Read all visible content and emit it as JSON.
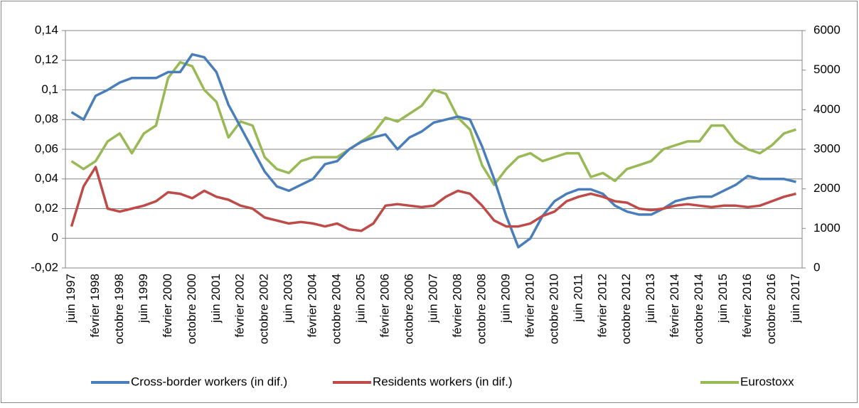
{
  "chart_data": {
    "type": "line",
    "categories": [
      "juin 1997",
      null,
      "février 1998",
      null,
      "octobre 1998",
      null,
      "juin 1999",
      null,
      "février 2000",
      null,
      "octobre 2000",
      null,
      "juin 2001",
      null,
      "février 2002",
      null,
      "octobre 2002",
      null,
      "juin 2003",
      null,
      "février 2004",
      null,
      "octobre 2004",
      null,
      "juin 2005",
      null,
      "février 2006",
      null,
      "octobre 2006",
      null,
      "juin 2007",
      null,
      "février 2008",
      null,
      "octobre 2008",
      null,
      "juin 2009",
      null,
      "février 2010",
      null,
      "octobre 2010",
      null,
      "juin 2011",
      null,
      "février 2012",
      null,
      "octobre 2012",
      null,
      "juin 2013",
      null,
      "février 2014",
      null,
      "octobre 2014",
      null,
      "juin 2015",
      null,
      "février 2016",
      null,
      "octobre 2016",
      null,
      "juin 2017"
    ],
    "series": [
      {
        "name": "Cross-border workers (in dif.)",
        "color": "#4a7ebb",
        "values": [
          0.085,
          0.08,
          0.096,
          0.1,
          0.105,
          0.108,
          0.108,
          0.108,
          0.112,
          0.112,
          0.124,
          0.122,
          0.112,
          0.09,
          0.075,
          0.06,
          0.045,
          0.035,
          0.032,
          0.036,
          0.04,
          0.05,
          0.052,
          0.06,
          0.065,
          0.068,
          0.07,
          0.06,
          0.068,
          0.072,
          0.078,
          0.08,
          0.082,
          0.08,
          0.062,
          0.04,
          0.015,
          -0.006,
          0.0,
          0.015,
          0.025,
          0.03,
          0.033,
          0.033,
          0.03,
          0.022,
          0.018,
          0.016,
          0.016,
          0.02,
          0.025,
          0.027,
          0.028,
          0.028,
          0.032,
          0.036,
          0.042,
          0.04,
          0.04,
          0.04,
          0.038
        ]
      },
      {
        "name": "Residents workers (in dif.)",
        "color": "#be4b48",
        "values": [
          0.008,
          0.035,
          0.048,
          0.02,
          0.018,
          0.02,
          0.022,
          0.025,
          0.031,
          0.03,
          0.027,
          0.032,
          0.028,
          0.026,
          0.022,
          0.02,
          0.014,
          0.012,
          0.01,
          0.011,
          0.01,
          0.008,
          0.01,
          0.006,
          0.005,
          0.01,
          0.022,
          0.023,
          0.022,
          0.021,
          0.022,
          0.028,
          0.032,
          0.03,
          0.022,
          0.012,
          0.008,
          0.008,
          0.01,
          0.015,
          0.018,
          0.025,
          0.028,
          0.03,
          0.028,
          0.025,
          0.024,
          0.02,
          0.019,
          0.02,
          0.022,
          0.023,
          0.022,
          0.021,
          0.022,
          0.022,
          0.021,
          0.022,
          0.025,
          0.028,
          0.03
        ]
      },
      {
        "name": "Eurostoxx",
        "color": "#98b954",
        "axis": "y2",
        "values": [
          2700,
          2500,
          2700,
          3200,
          3400,
          2900,
          3400,
          3600,
          4800,
          5200,
          5100,
          4500,
          4200,
          3300,
          3700,
          3600,
          2800,
          2500,
          2400,
          2700,
          2800,
          2800,
          2800,
          3000,
          3200,
          3400,
          3800,
          3700,
          3900,
          4100,
          4500,
          4400,
          3800,
          3500,
          2600,
          2100,
          2500,
          2800,
          2900,
          2700,
          2800,
          2900,
          2900,
          2300,
          2400,
          2200,
          2500,
          2600,
          2700,
          3000,
          3100,
          3200,
          3200,
          3600,
          3600,
          3200,
          3000,
          2900,
          3100,
          3400,
          3500
        ]
      }
    ],
    "ylim": [
      -0.02,
      0.14
    ],
    "yticks": [
      {
        "value": -0.02,
        "label": "-0,02"
      },
      0,
      {
        "value": 0.02,
        "label": "0,02"
      },
      {
        "value": 0.04,
        "label": "0,04"
      },
      {
        "value": 0.06,
        "label": "0,06"
      },
      {
        "value": 0.08,
        "label": "0,08"
      },
      {
        "value": 0.1,
        "label": "0,1"
      },
      {
        "value": 0.12,
        "label": "0,12"
      },
      {
        "value": 0.14,
        "label": "0,14"
      }
    ],
    "y2lim": [
      0,
      6000
    ],
    "y2ticks": [
      0,
      1000,
      2000,
      3000,
      4000,
      5000,
      6000
    ],
    "grid": true,
    "legend": "bottom"
  }
}
